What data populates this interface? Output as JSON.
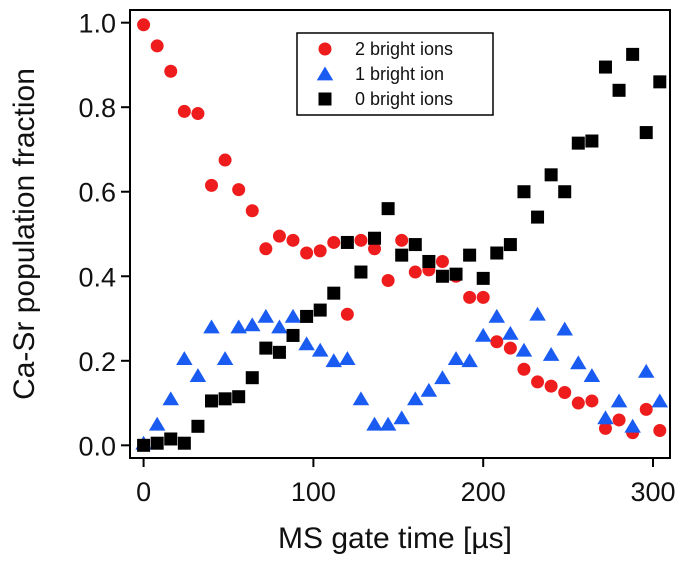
{
  "chart_data": {
    "type": "scatter",
    "xlabel": "MS gate time [µs]",
    "ylabel": "Ca-Sr population fraction",
    "xlim": [
      -8,
      310
    ],
    "ylim": [
      -0.03,
      1.03
    ],
    "xticks": [
      0,
      100,
      200,
      300
    ],
    "xtick_labels": [
      "0",
      "100",
      "200",
      "300"
    ],
    "yticks": [
      0.0,
      0.2,
      0.4,
      0.6,
      0.8,
      1.0
    ],
    "ytick_labels": [
      "0.0",
      "0.2",
      "0.4",
      "0.6",
      "0.8",
      "1.0"
    ],
    "grid": false,
    "legend_position": "top-center",
    "series": [
      {
        "name": "2 bright ions",
        "marker": "circle",
        "color": "#ee1c1c",
        "points": [
          [
            0,
            0.995
          ],
          [
            8,
            0.945
          ],
          [
            16,
            0.885
          ],
          [
            24,
            0.79
          ],
          [
            32,
            0.785
          ],
          [
            40,
            0.615
          ],
          [
            48,
            0.675
          ],
          [
            56,
            0.605
          ],
          [
            64,
            0.555
          ],
          [
            72,
            0.465
          ],
          [
            80,
            0.495
          ],
          [
            88,
            0.485
          ],
          [
            96,
            0.455
          ],
          [
            104,
            0.46
          ],
          [
            112,
            0.48
          ],
          [
            120,
            0.31
          ],
          [
            128,
            0.485
          ],
          [
            136,
            0.465
          ],
          [
            144,
            0.39
          ],
          [
            152,
            0.485
          ],
          [
            160,
            0.41
          ],
          [
            168,
            0.415
          ],
          [
            176,
            0.435
          ],
          [
            184,
            0.4
          ],
          [
            192,
            0.35
          ],
          [
            200,
            0.35
          ],
          [
            208,
            0.245
          ],
          [
            216,
            0.23
          ],
          [
            224,
            0.18
          ],
          [
            232,
            0.15
          ],
          [
            240,
            0.14
          ],
          [
            248,
            0.125
          ],
          [
            256,
            0.1
          ],
          [
            264,
            0.105
          ],
          [
            272,
            0.04
          ],
          [
            280,
            0.06
          ],
          [
            288,
            0.03
          ],
          [
            296,
            0.085
          ],
          [
            304,
            0.035
          ]
        ]
      },
      {
        "name": "1 bright ion",
        "marker": "triangle",
        "color": "#1a5cf2",
        "points": [
          [
            0,
            0.005
          ],
          [
            8,
            0.05
          ],
          [
            16,
            0.11
          ],
          [
            24,
            0.205
          ],
          [
            32,
            0.165
          ],
          [
            40,
            0.28
          ],
          [
            48,
            0.205
          ],
          [
            56,
            0.28
          ],
          [
            64,
            0.285
          ],
          [
            72,
            0.305
          ],
          [
            80,
            0.28
          ],
          [
            88,
            0.305
          ],
          [
            96,
            0.24
          ],
          [
            104,
            0.225
          ],
          [
            112,
            0.2
          ],
          [
            120,
            0.205
          ],
          [
            128,
            0.11
          ],
          [
            136,
            0.05
          ],
          [
            144,
            0.05
          ],
          [
            152,
            0.065
          ],
          [
            160,
            0.11
          ],
          [
            168,
            0.13
          ],
          [
            176,
            0.16
          ],
          [
            184,
            0.205
          ],
          [
            192,
            0.2
          ],
          [
            200,
            0.26
          ],
          [
            208,
            0.305
          ],
          [
            216,
            0.265
          ],
          [
            224,
            0.225
          ],
          [
            232,
            0.31
          ],
          [
            240,
            0.215
          ],
          [
            248,
            0.275
          ],
          [
            256,
            0.195
          ],
          [
            264,
            0.165
          ],
          [
            272,
            0.065
          ],
          [
            280,
            0.105
          ],
          [
            288,
            0.045
          ],
          [
            296,
            0.175
          ],
          [
            304,
            0.105
          ]
        ]
      },
      {
        "name": "0 bright ions",
        "marker": "square",
        "color": "#000000",
        "points": [
          [
            0,
            0.0
          ],
          [
            8,
            0.005
          ],
          [
            16,
            0.015
          ],
          [
            24,
            0.005
          ],
          [
            32,
            0.045
          ],
          [
            40,
            0.105
          ],
          [
            48,
            0.11
          ],
          [
            56,
            0.115
          ],
          [
            64,
            0.16
          ],
          [
            72,
            0.23
          ],
          [
            80,
            0.22
          ],
          [
            88,
            0.26
          ],
          [
            96,
            0.305
          ],
          [
            104,
            0.32
          ],
          [
            112,
            0.36
          ],
          [
            120,
            0.48
          ],
          [
            128,
            0.41
          ],
          [
            136,
            0.49
          ],
          [
            144,
            0.56
          ],
          [
            152,
            0.45
          ],
          [
            160,
            0.475
          ],
          [
            168,
            0.435
          ],
          [
            176,
            0.4
          ],
          [
            184,
            0.405
          ],
          [
            192,
            0.45
          ],
          [
            200,
            0.395
          ],
          [
            208,
            0.455
          ],
          [
            216,
            0.475
          ],
          [
            224,
            0.6
          ],
          [
            232,
            0.54
          ],
          [
            240,
            0.64
          ],
          [
            248,
            0.6
          ],
          [
            256,
            0.715
          ],
          [
            264,
            0.72
          ],
          [
            272,
            0.895
          ],
          [
            280,
            0.84
          ],
          [
            288,
            0.925
          ],
          [
            296,
            0.74
          ],
          [
            304,
            0.86
          ]
        ]
      }
    ]
  }
}
